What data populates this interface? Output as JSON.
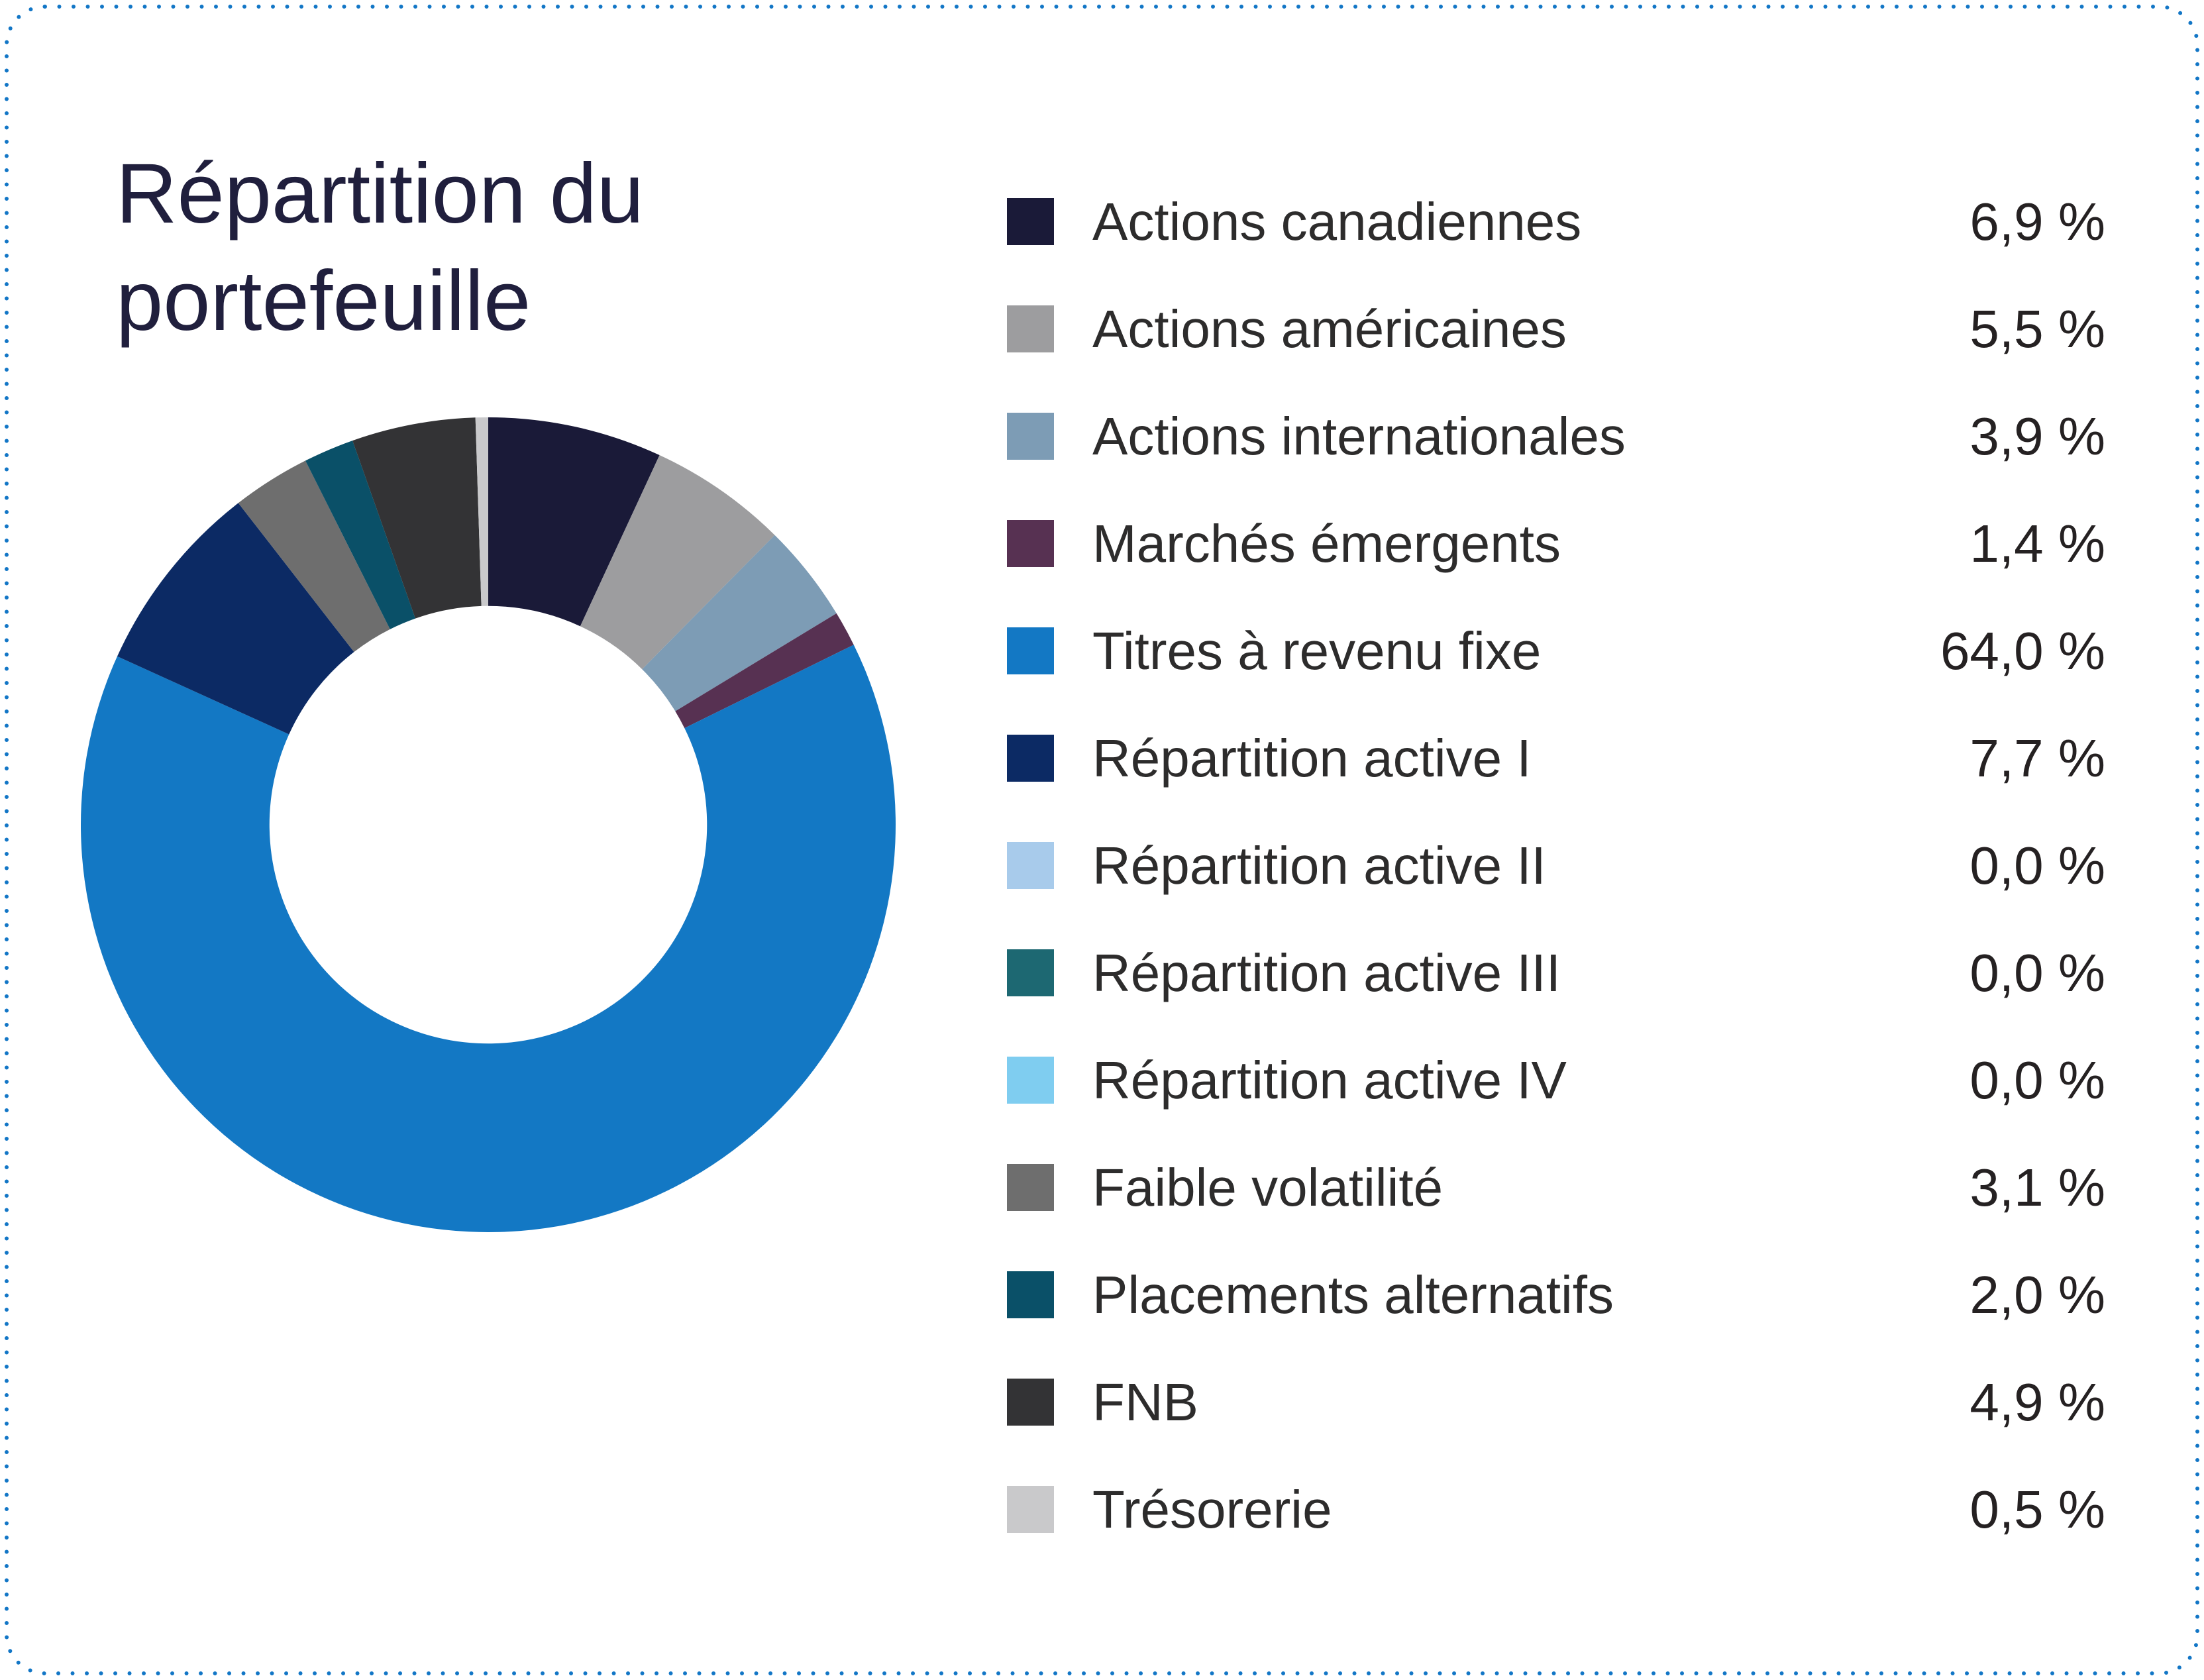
{
  "card": {
    "background": "#ffffff",
    "border_color": "#1276c6"
  },
  "title": {
    "text": "Répartition du portefeuille",
    "lines": [
      "Répartition du",
      "portefeuille"
    ],
    "color": "#201f3d"
  },
  "chart_data": {
    "type": "donut",
    "title": "Répartition du portefeuille",
    "legend_position": "right",
    "start_angle_deg": -90,
    "direction": "clockwise",
    "inner_radius_ratio": 0.537,
    "categories": [
      "Actions canadiennes",
      "Actions américaines",
      "Actions internationales",
      "Marchés émergents",
      "Titres à revenu fixe",
      "Répartition active I",
      "Répartition active II",
      "Répartition active III",
      "Répartition active IV",
      "Faible volatilité",
      "Placements alternatifs",
      "FNB",
      "Trésorerie"
    ],
    "values": [
      6.9,
      5.5,
      3.9,
      1.4,
      64.0,
      7.7,
      0.0,
      0.0,
      0.0,
      3.1,
      2.0,
      4.9,
      0.5
    ],
    "value_labels": [
      "6,9 %",
      "5,5 %",
      "3,9 %",
      "1,4 %",
      "64,0 %",
      "7,7 %",
      "0,0 %",
      "0,0 %",
      "0,0 %",
      "3,1 %",
      "2,0 %",
      "4,9 %",
      "0,5 %"
    ],
    "colors": [
      "#1a1a38",
      "#9d9d9f",
      "#7d9cb5",
      "#573152",
      "#1378c4",
      "#0c2a64",
      "#a8cbeb",
      "#1d6872",
      "#7fcdf0",
      "#6e6e6e",
      "#0a5068",
      "#333335",
      "#c9c9cb"
    ]
  }
}
